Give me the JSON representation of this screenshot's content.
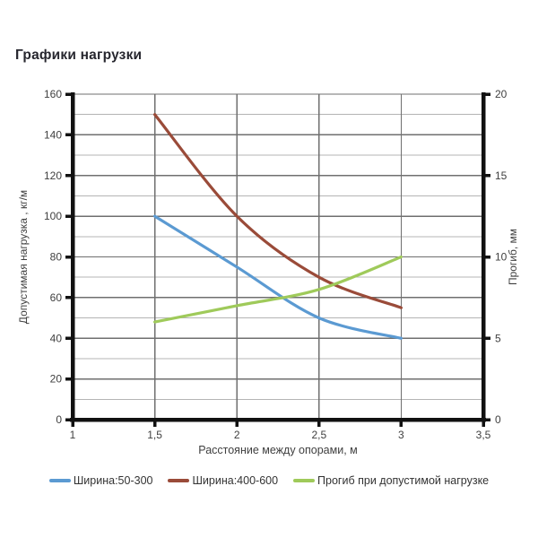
{
  "page": {
    "background": "#ffffff"
  },
  "chart_data": {
    "type": "line",
    "title": "Графики нагрузки",
    "x_axis": {
      "label": "Расстояние между опорами, м",
      "lim": [
        1,
        3.5
      ],
      "ticks": [
        1,
        1.5,
        2,
        2.5,
        3,
        3.5
      ],
      "tick_labels": [
        "1",
        "1,5",
        "2",
        "2,5",
        "3",
        "3,5"
      ]
    },
    "y_left": {
      "label": "Допустимая нагрузка , кг/м",
      "lim": [
        0,
        160
      ],
      "major_step": 20,
      "minor_step": 10,
      "ticks": [
        0,
        20,
        40,
        60,
        80,
        100,
        120,
        140,
        160
      ]
    },
    "y_right": {
      "label": "Прогиб, мм",
      "lim": [
        0,
        20
      ],
      "ticks": [
        0,
        5,
        10,
        15,
        20
      ]
    },
    "grid": {
      "horizontal_major": true,
      "horizontal_minor": true,
      "vertical": true
    },
    "legend_position": "bottom",
    "series": [
      {
        "name": "Ширина:50-300",
        "axis": "left",
        "color": "#5b9ad2",
        "x": [
          1.5,
          2,
          2.5,
          3
        ],
        "y": [
          100,
          75,
          50,
          40
        ]
      },
      {
        "name": "Ширина:400-600",
        "axis": "left",
        "color": "#9a4b39",
        "x": [
          1.5,
          2,
          2.5,
          3
        ],
        "y": [
          150,
          100,
          70,
          55
        ]
      },
      {
        "name": "Прогиб при допустимой нагрузке",
        "axis": "right",
        "color": "#9fca5a",
        "x": [
          1.5,
          2,
          2.5,
          3
        ],
        "y": [
          6,
          7,
          8,
          10
        ]
      }
    ],
    "colors": {
      "grid_major": "#6f6f6f",
      "grid_minor": "#b4b4b4",
      "axis": "#111111",
      "tick_text": "#3f3f3f"
    }
  }
}
